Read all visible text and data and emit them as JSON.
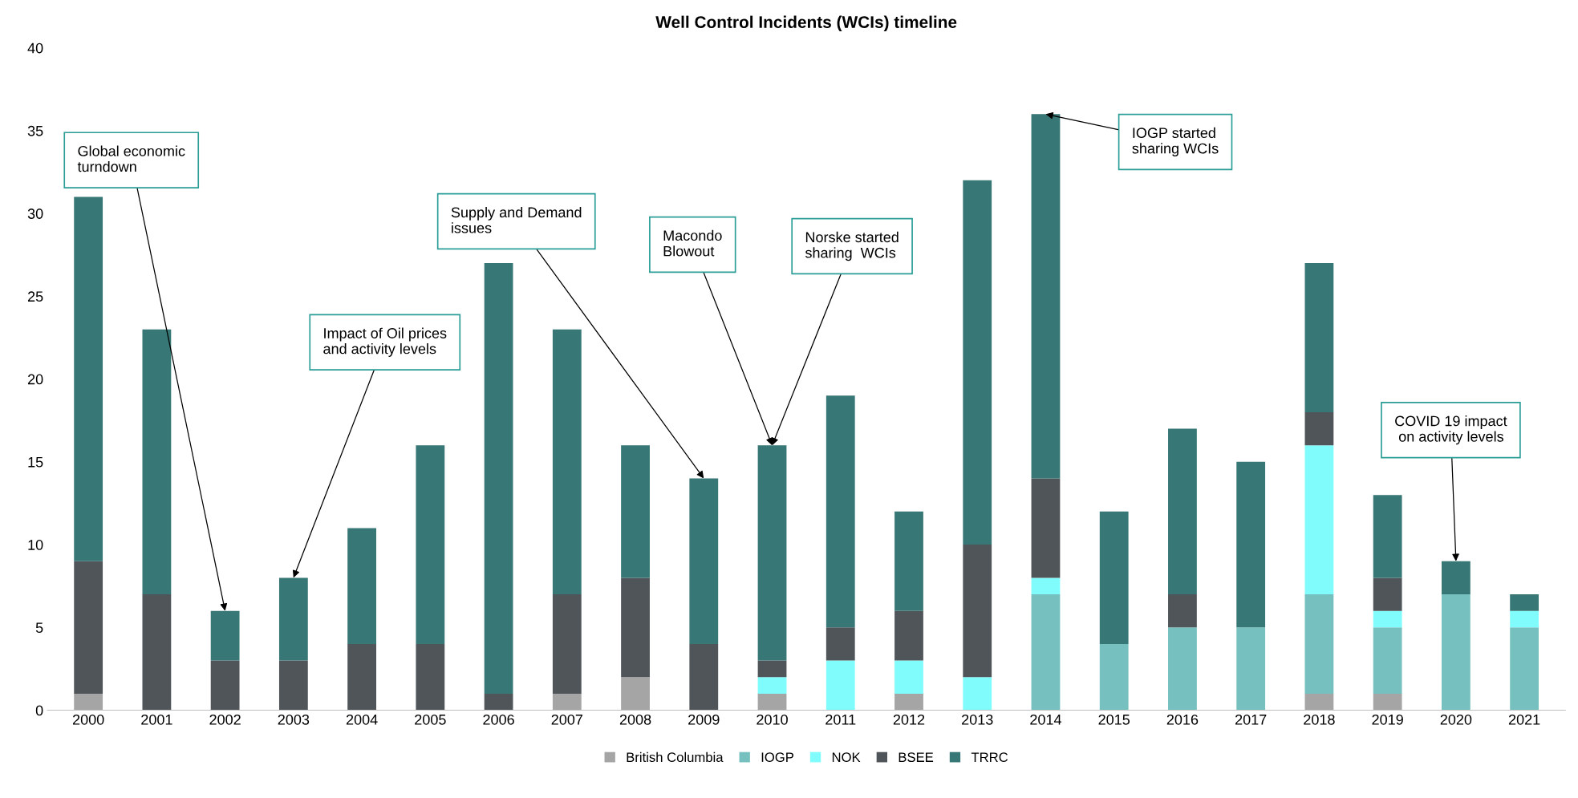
{
  "chart_data": {
    "type": "bar",
    "title": "Well Control Incidents (WCIs) timeline",
    "stacked": true,
    "categories": [
      "2000",
      "2001",
      "2002",
      "2003",
      "2004",
      "2005",
      "2006",
      "2007",
      "2008",
      "2009",
      "2010",
      "2011",
      "2012",
      "2013",
      "2014",
      "2015",
      "2016",
      "2017",
      "2018",
      "2019",
      "2020",
      "2021"
    ],
    "series": [
      {
        "name": "British Columbia",
        "color": "#a5a5a5",
        "values": [
          1,
          0,
          0,
          0,
          0,
          0,
          0,
          1,
          2,
          0,
          1,
          0,
          1,
          0,
          0,
          0,
          0,
          0,
          1,
          1,
          0,
          0
        ]
      },
      {
        "name": "IOGP",
        "color": "#76c0bf",
        "values": [
          0,
          0,
          0,
          0,
          0,
          0,
          0,
          0,
          0,
          0,
          0,
          0,
          0,
          0,
          7,
          4,
          5,
          5,
          6,
          4,
          7,
          5
        ]
      },
      {
        "name": "NOK",
        "color": "#80fcfc",
        "values": [
          0,
          0,
          0,
          0,
          0,
          0,
          0,
          0,
          0,
          0,
          1,
          3,
          2,
          2,
          1,
          0,
          0,
          0,
          9,
          1,
          0,
          1
        ]
      },
      {
        "name": "BSEE",
        "color": "#505559",
        "values": [
          8,
          7,
          3,
          3,
          4,
          4,
          1,
          6,
          6,
          4,
          1,
          2,
          3,
          8,
          6,
          0,
          2,
          0,
          2,
          2,
          0,
          0
        ]
      },
      {
        "name": "TRRC",
        "color": "#377775",
        "values": [
          22,
          16,
          3,
          5,
          7,
          12,
          26,
          16,
          8,
          10,
          13,
          14,
          6,
          22,
          22,
          8,
          10,
          10,
          9,
          5,
          2,
          1
        ]
      }
    ],
    "ylim": [
      0,
      40
    ],
    "yticks": [
      0,
      5,
      10,
      15,
      20,
      25,
      30,
      35,
      40
    ],
    "grid": false,
    "legend": "bottom",
    "annotations": [
      {
        "text": "Global economic\nturndown",
        "x": "2002",
        "y": 6
      },
      {
        "text": "Impact of Oil prices\nand activity levels",
        "x": "2003",
        "y": 8
      },
      {
        "text": "Supply and Demand\nissues",
        "x": "2009",
        "y": 14
      },
      {
        "text": "Macondo\nBlowout",
        "x": "2010",
        "y": 16
      },
      {
        "text": "Norske started\nsharing  WCIs",
        "x": "2010",
        "y": 16
      },
      {
        "text": "IOGP started\nsharing WCIs",
        "x": "2014",
        "y": 36
      },
      {
        "text": "COVID 19 impact\n on activity levels",
        "x": "2020",
        "y": 9
      }
    ]
  }
}
